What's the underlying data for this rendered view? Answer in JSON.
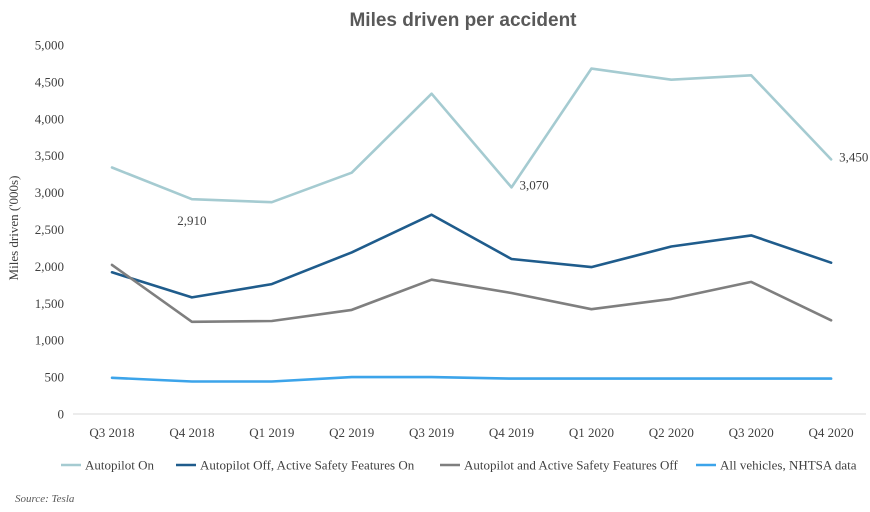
{
  "chart_data": {
    "type": "line",
    "title": "Miles driven per accident",
    "xlabel": "",
    "ylabel": "Miles driven ('000s)",
    "ylim": [
      0,
      5000
    ],
    "yticks": [
      0,
      500,
      1000,
      1500,
      2000,
      2500,
      3000,
      3500,
      4000,
      4500,
      5000
    ],
    "ytick_labels": [
      "0",
      "500",
      "1,000",
      "1,500",
      "2,000",
      "2,500",
      "3,000",
      "3,500",
      "4,000",
      "4,500",
      "5,000"
    ],
    "categories": [
      "Q3 2018",
      "Q4 2018",
      "Q1 2019",
      "Q2 2019",
      "Q3 2019",
      "Q4 2019",
      "Q1 2020",
      "Q2 2020",
      "Q3 2020",
      "Q4 2020"
    ],
    "grid": false,
    "legend_position": "bottom",
    "series": [
      {
        "name": "Autopilot On",
        "color": "#a5cbd1",
        "values": [
          3340,
          2910,
          2870,
          3270,
          4340,
          3070,
          4680,
          4530,
          4590,
          3450
        ]
      },
      {
        "name": "Autopilot Off, Active Safety Features On",
        "color": "#1f5c8c",
        "values": [
          1920,
          1580,
          1760,
          2190,
          2700,
          2100,
          1990,
          2270,
          2420,
          2050
        ]
      },
      {
        "name": "Autopilot and Active Safety Features Off",
        "color": "#7f7f7f",
        "values": [
          2020,
          1250,
          1260,
          1410,
          1820,
          1640,
          1420,
          1560,
          1790,
          1270
        ]
      },
      {
        "name": "All vehicles, NHTSA data",
        "color": "#3ca4ea",
        "values": [
          490,
          440,
          440,
          500,
          500,
          480,
          480,
          480,
          480,
          480
        ]
      }
    ],
    "annotations": [
      {
        "series": 0,
        "index": 1,
        "text": "2,910"
      },
      {
        "series": 0,
        "index": 5,
        "text": "3,070"
      },
      {
        "series": 0,
        "index": 9,
        "text": "3,450"
      }
    ],
    "source": "Source: Tesla"
  }
}
